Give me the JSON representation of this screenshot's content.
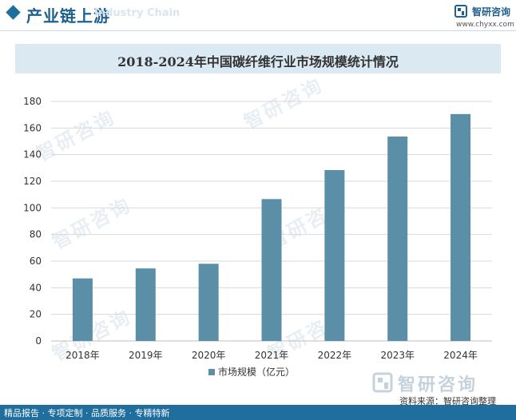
{
  "header": {
    "title": "产业链上游",
    "subtitle_en": "Industry Chain"
  },
  "brand": {
    "name": "智研咨询",
    "url": "www.chyxx.com",
    "watermark": "智研咨询"
  },
  "colors": {
    "bar": "#5b8fa8",
    "accent": "#1f6e9e",
    "title_band": "#dbe9f3",
    "grid": "#d9d9d9"
  },
  "chart_data": {
    "type": "bar",
    "title": "2018-2024年中国碳纤维行业市场规模统计情况",
    "categories": [
      "2018年",
      "2019年",
      "2020年",
      "2021年",
      "2022年",
      "2023年",
      "2024年"
    ],
    "series": [
      {
        "name": "市场规模（亿元）",
        "values": [
          47,
          54.5,
          58,
          106.6,
          128.4,
          153.6,
          170.5
        ]
      }
    ],
    "ylim": [
      0,
      180
    ],
    "yticks": [
      0,
      20,
      40,
      60,
      80,
      100,
      120,
      140,
      160,
      180
    ],
    "grid": true,
    "legend_position": "bottom"
  },
  "footer": {
    "text": "精品报告 · 专项定制 · 品质服务 · 专精特新",
    "source": "资料来源：智研咨询整理"
  }
}
